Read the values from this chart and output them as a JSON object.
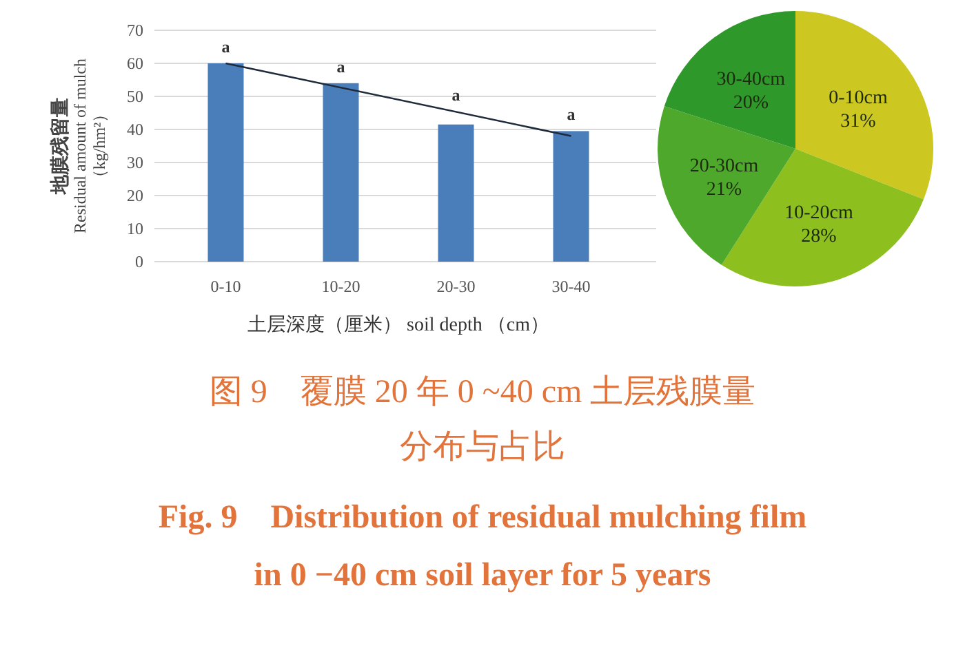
{
  "chart_data": [
    {
      "type": "bar",
      "categories": [
        "0-10",
        "10-20",
        "20-30",
        "30-40"
      ],
      "series": [
        {
          "type": "bar",
          "color": "#4a7ebb",
          "values": [
            60,
            54,
            41.5,
            39.5
          ]
        },
        {
          "type": "line",
          "color": "#1f2a3a",
          "x": [
            "0-10",
            "30-40"
          ],
          "values": [
            60,
            38
          ]
        }
      ],
      "xlabel": "土层深度（厘米） soil depth （cm）",
      "ylabel": "地膜残留量\nResidual amount of mulch\n（kg/hm²）",
      "ylim": [
        0,
        70
      ],
      "yticks": [
        0,
        10,
        20,
        30,
        40,
        50,
        60,
        70
      ],
      "grid": "y",
      "annotations": [
        "a",
        "a",
        "a",
        "a",
        "图 9　覆膜 20 年 0 ~40 cm 土层残膜量",
        "分布与占比",
        "Fig. 9　Distribution of residual mulching film",
        "in 0 −40 cm soil layer for 5 years"
      ]
    },
    {
      "type": "pie",
      "categories": [
        "0-10cm",
        "10-20cm",
        "20-30cm",
        "30-40cm"
      ],
      "values": [
        31,
        28,
        21,
        20
      ],
      "colors": [
        "#cdc721",
        "#8dbf1e",
        "#4ea82b",
        "#2f982b"
      ],
      "value_labels": [
        "31%",
        "28%",
        "21%",
        "20%"
      ]
    }
  ]
}
